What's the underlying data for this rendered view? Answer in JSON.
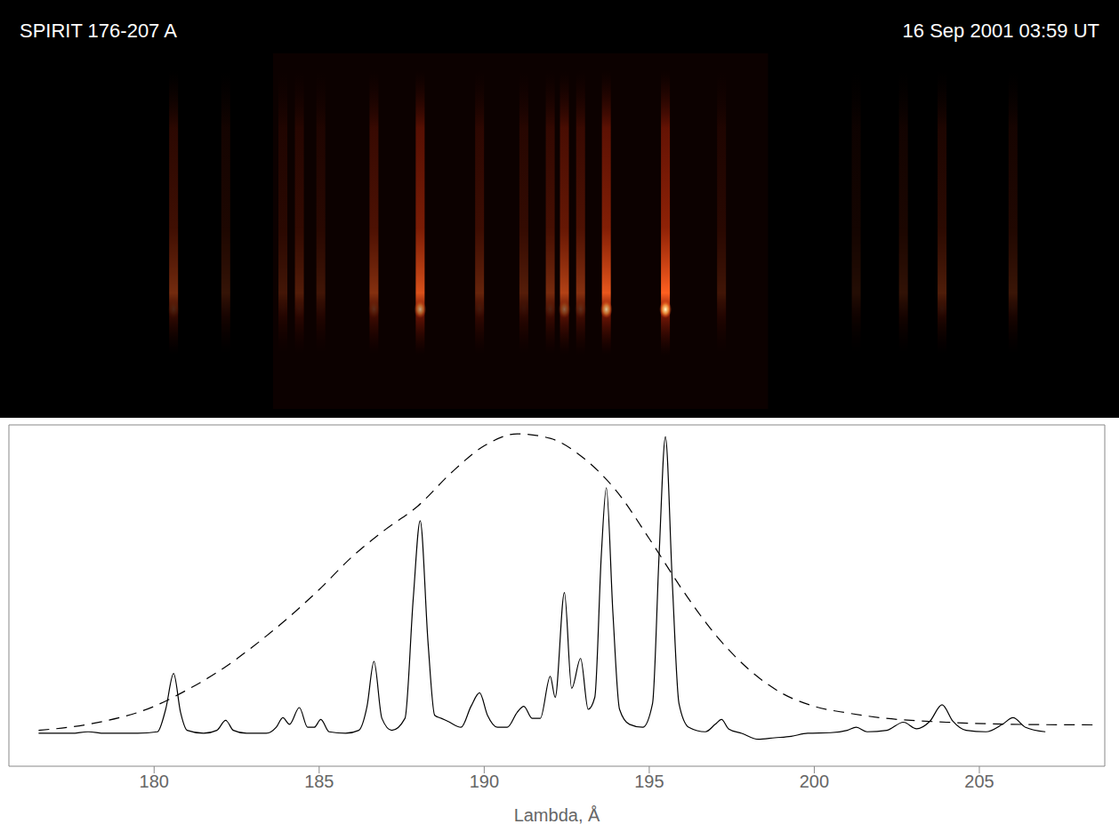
{
  "chart_data": {
    "type": "line",
    "title": "SPIRIT 176-207 A",
    "subtitle": "16 Sep 2001 03:59 UT",
    "x_label": "Lambda, Å",
    "xlim": [
      175.6,
      208.8
    ],
    "xticks": [
      180,
      185,
      190,
      195,
      200,
      205
    ],
    "ylim": [
      -0.11,
      1.03
    ],
    "tick_labels": "x",
    "grid": false,
    "series": [
      {
        "color": "#000000",
        "line_style": "solid",
        "x": [
          176.5,
          177.5,
          178,
          178.5,
          179.5,
          180.1,
          180.35,
          180.59,
          180.8,
          181.0,
          181.5,
          181.9,
          182.17,
          182.4,
          182.8,
          183.4,
          183.7,
          183.9,
          184.1,
          184.4,
          184.65,
          184.85,
          185.05,
          185.3,
          185.8,
          186.2,
          186.45,
          186.66,
          186.9,
          187.2,
          187.6,
          187.85,
          188.06,
          188.3,
          188.5,
          188.7,
          188.9,
          189.3,
          189.6,
          189.86,
          190.1,
          190.4,
          190.7,
          191.0,
          191.2,
          191.45,
          191.7,
          192.0,
          192.15,
          192.43,
          192.65,
          192.92,
          193.15,
          193.35,
          193.55,
          193.7,
          193.9,
          194.1,
          194.4,
          194.8,
          195.1,
          195.3,
          195.49,
          195.7,
          195.9,
          196.2,
          196.7,
          197.0,
          197.19,
          197.4,
          197.8,
          198.3,
          198.8,
          199.3,
          199.8,
          200.5,
          201.0,
          201.27,
          201.6,
          202.2,
          202.7,
          203.1,
          203.5,
          203.87,
          204.2,
          204.6,
          205.2,
          205.7,
          206.02,
          206.4,
          207.0
        ],
        "values": [
          0,
          0,
          0.005,
          0,
          0,
          0.005,
          0.08,
          0.2,
          0.07,
          0.01,
          0,
          0.01,
          0.043,
          0.01,
          0,
          0,
          0.02,
          0.052,
          0.03,
          0.086,
          0.02,
          0.02,
          0.046,
          0.005,
          0,
          0.01,
          0.09,
          0.24,
          0.05,
          0.01,
          0.05,
          0.45,
          0.71,
          0.3,
          0.06,
          0.05,
          0.04,
          0.02,
          0.09,
          0.135,
          0.06,
          0.02,
          0.02,
          0.07,
          0.09,
          0.05,
          0.05,
          0.19,
          0.12,
          0.47,
          0.15,
          0.25,
          0.08,
          0.12,
          0.6,
          0.82,
          0.4,
          0.08,
          0.03,
          0.02,
          0.1,
          0.6,
          0.99,
          0.5,
          0.1,
          0.02,
          0.005,
          0.03,
          0.046,
          0.015,
          0,
          -0.02,
          -0.015,
          -0.01,
          0,
          0.002,
          0.01,
          0.02,
          0.005,
          0.01,
          0.037,
          0.015,
          0.04,
          0.095,
          0.04,
          0.01,
          0.005,
          0.03,
          0.052,
          0.02,
          0.005
        ]
      },
      {
        "color": "#000000",
        "line_style": "dashed",
        "x": [
          176.5,
          178,
          180,
          181,
          182,
          183,
          184,
          185,
          186,
          187,
          188,
          189,
          190,
          191,
          192,
          193,
          194,
          195,
          196,
          197,
          198,
          199,
          200,
          201,
          202,
          204,
          206,
          208.5
        ],
        "values": [
          0.01,
          0.03,
          0.09,
          0.145,
          0.21,
          0.29,
          0.38,
          0.48,
          0.59,
          0.68,
          0.76,
          0.87,
          0.96,
          1.0,
          0.985,
          0.92,
          0.81,
          0.65,
          0.48,
          0.33,
          0.215,
          0.135,
          0.09,
          0.068,
          0.052,
          0.037,
          0.03,
          0.028
        ]
      }
    ]
  }
}
